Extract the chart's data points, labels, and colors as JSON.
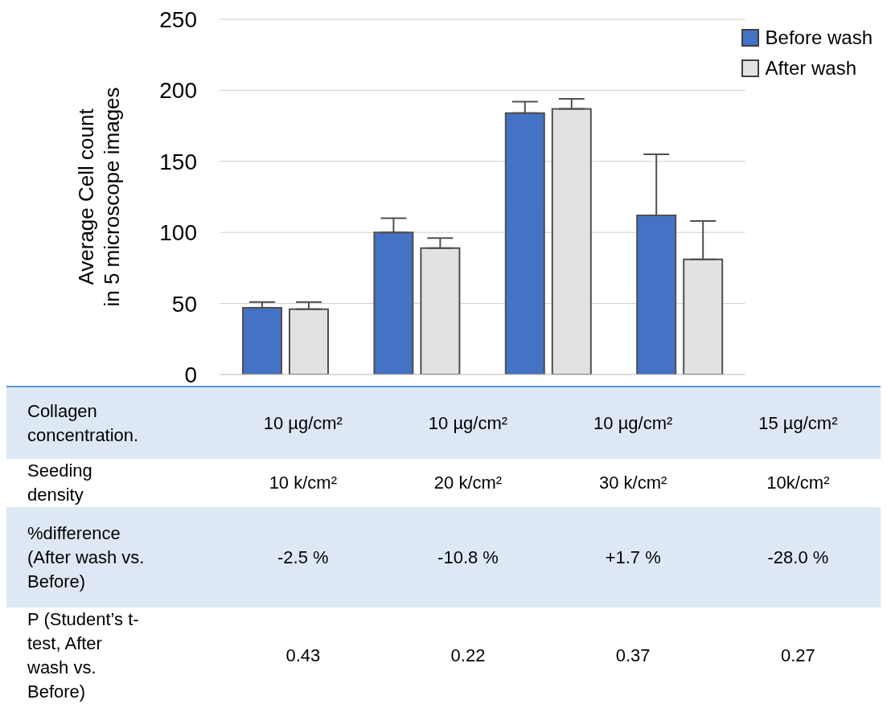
{
  "chart_data": {
    "type": "bar",
    "ylabel": "Average Cell count\nin 5 microscope images",
    "categories": [
      null,
      null,
      null,
      null
    ],
    "series": [
      {
        "name": "Before wash",
        "color": "#4472c4",
        "values": [
          47,
          100,
          184,
          112
        ],
        "errors": [
          [
            47,
            51
          ],
          [
            100,
            110
          ],
          [
            184,
            192
          ],
          [
            112,
            155
          ]
        ]
      },
      {
        "name": "After wash",
        "color": "#e2e2e2",
        "values": [
          46,
          89,
          187,
          81
        ],
        "errors": [
          [
            46,
            51
          ],
          [
            89,
            96
          ],
          [
            187,
            194
          ],
          [
            81,
            108
          ]
        ]
      }
    ],
    "ylim": [
      0,
      250
    ],
    "yticks": [
      0,
      50,
      100,
      150,
      200,
      250
    ],
    "grid": "y",
    "legend": "top right",
    "tick_labels": "y",
    "annotations": [
      "Collagen concentration.",
      "10 µg/cm²",
      "10 µg/cm²",
      "10 µg/cm²",
      "15 µg/cm²",
      "Seeding density",
      "10 k/cm²",
      "20 k/cm²",
      "30 k/cm²",
      "10k/cm²",
      "%difference (After wash vs. Before)",
      "-2.5 %",
      "-10.8 %",
      "+1.7 %",
      "-28.0 %",
      "P (Student’s t-test, After wash vs. Before)",
      "0.43",
      "0.22",
      "0.37",
      "0.27"
    ]
  }
}
